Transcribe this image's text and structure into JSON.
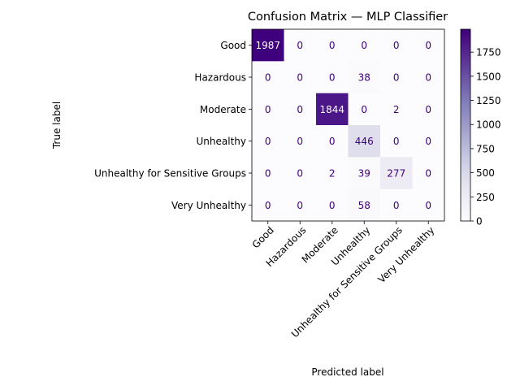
{
  "chart_data": {
    "type": "heatmap",
    "title": "Confusion Matrix — MLP Classifier",
    "xlabel": "Predicted label",
    "ylabel": "True label",
    "x_categories": [
      "Good",
      "Hazardous",
      "Moderate",
      "Unhealthy",
      "Unhealthy for Sensitive Groups",
      "Very Unhealthy"
    ],
    "y_categories": [
      "Good",
      "Hazardous",
      "Moderate",
      "Unhealthy",
      "Unhealthy for Sensitive Groups",
      "Very Unhealthy"
    ],
    "matrix": [
      [
        1987,
        0,
        0,
        0,
        0,
        0
      ],
      [
        0,
        0,
        0,
        38,
        0,
        0
      ],
      [
        0,
        0,
        1844,
        0,
        2,
        0
      ],
      [
        0,
        0,
        0,
        446,
        0,
        0
      ],
      [
        0,
        0,
        2,
        39,
        277,
        0
      ],
      [
        0,
        0,
        0,
        58,
        0,
        0
      ]
    ],
    "colormap": "Purples",
    "colormap_low": "#fcfbfd",
    "colormap_high": "#3f007d",
    "value_range": [
      0,
      1987
    ],
    "colorbar_ticks": [
      0,
      250,
      500,
      750,
      1000,
      1250,
      1500,
      1750
    ],
    "x_tick_rotation_deg": 45
  }
}
